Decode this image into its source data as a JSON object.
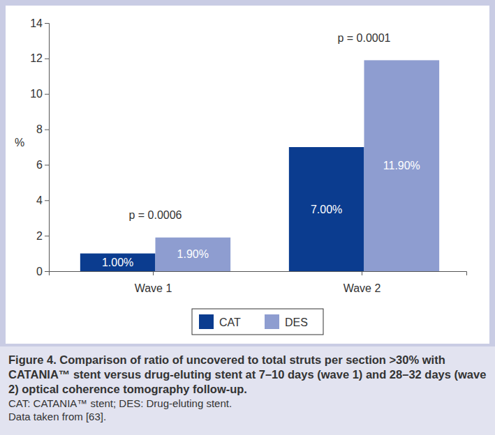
{
  "chart_data": {
    "type": "bar",
    "title": "Figure 4. Comparison of ratio of uncovered to total struts per section >30% with CATANIA™ stent versus drug-eluting stent at 7–10 days (wave 1) and 28–32 days (wave 2) optical coherence tomography follow-up.",
    "footnotes": [
      "CAT: CATANIA™ stent; DES: Drug-eluting stent.",
      "Data taken from [63]."
    ],
    "y_label": "%",
    "categories": [
      "Wave 1",
      "Wave 2"
    ],
    "series": [
      {
        "name": "CAT",
        "color": "#0b3c8f",
        "values": [
          1.0,
          7.0
        ],
        "value_labels": [
          "1.00%",
          "7.00%"
        ]
      },
      {
        "name": "DES",
        "color": "#8e9dd0",
        "values": [
          1.9,
          11.9
        ],
        "value_labels": [
          "1.90%",
          "11.90%"
        ]
      }
    ],
    "annotations": [
      {
        "category": "Wave 1",
        "text": "p = 0.0006"
      },
      {
        "category": "Wave 2",
        "text": "p = 0.0001"
      }
    ],
    "ylim": [
      0,
      14
    ],
    "yticks": [
      0,
      2,
      4,
      6,
      8,
      10,
      12,
      14
    ],
    "grid": false,
    "legend": "bottom",
    "data_labels": true
  }
}
